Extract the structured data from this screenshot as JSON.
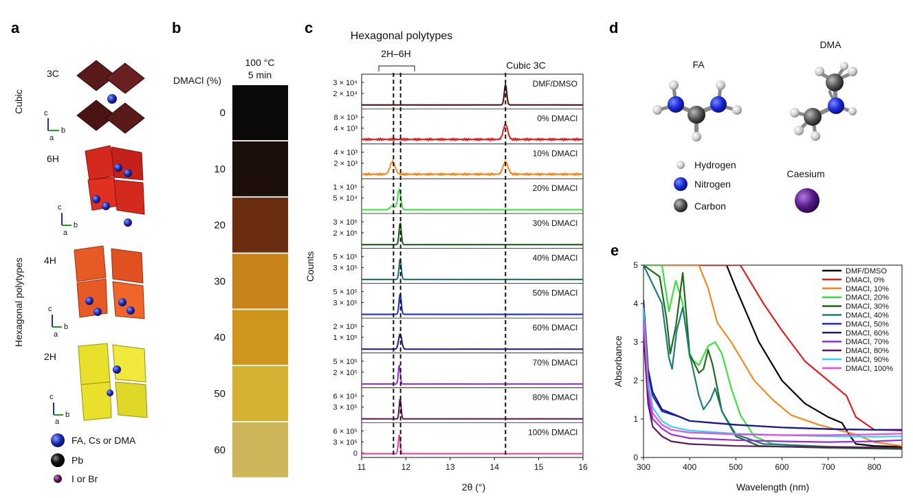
{
  "panels": {
    "a": {
      "letter": "a",
      "cubic_label": "Cubic",
      "hex_label": "Hexagonal polytypes",
      "structures": [
        {
          "name": "3C",
          "color": "#5a1a1a"
        },
        {
          "name": "6H",
          "color": "#d42a1e"
        },
        {
          "name": "4H",
          "color": "#e85a25"
        },
        {
          "name": "2H",
          "color": "#e8e02a"
        }
      ],
      "axis_labels": {
        "c": "c",
        "b": "b",
        "a": "a"
      },
      "legend": [
        {
          "label": "FA, Cs or DMA",
          "color": "#1f2f8f"
        },
        {
          "label": "Pb",
          "color": "#000000"
        },
        {
          "label": "I or Br",
          "color": "#5a1a5a"
        }
      ]
    },
    "b": {
      "letter": "b",
      "header_line1": "100 °C",
      "header_line2": "5 min",
      "col_label": "DMACl (%)",
      "films": [
        {
          "pct": "0",
          "color": "#0b0a09"
        },
        {
          "pct": "10",
          "color": "#1c0f0b"
        },
        {
          "pct": "20",
          "color": "#6b2d10"
        },
        {
          "pct": "30",
          "color": "#c8841a"
        },
        {
          "pct": "40",
          "color": "#d0951c"
        },
        {
          "pct": "50",
          "color": "#d6b233"
        },
        {
          "pct": "60",
          "color": "#cdb55a"
        }
      ]
    },
    "c": {
      "letter": "c",
      "title": "Hexagonal polytypes",
      "bracket_label": "2H–6H",
      "cubic_label": "Cubic 3C",
      "ylabel": "Counts",
      "xlabel": "2θ (°)",
      "xticks": [
        "11",
        "12",
        "13",
        "14",
        "15",
        "16"
      ],
      "panels": [
        {
          "label": "DMF/DMSO",
          "color": "#4a1010",
          "ticks": [
            "3 × 10⁴",
            "2 × 10⁴"
          ]
        },
        {
          "label": "0% DMACl",
          "color": "#e01e1e",
          "ticks": [
            "8 × 10³",
            "4 × 10³"
          ]
        },
        {
          "label": "10% DMACl",
          "color": "#f08a1e",
          "ticks": [
            "4 × 10³",
            "2 × 10³"
          ]
        },
        {
          "label": "20% DMACl",
          "color": "#3ce03c",
          "ticks": [
            "1 × 10⁵",
            "5 × 10⁴"
          ]
        },
        {
          "label": "30% DMACl",
          "color": "#1a5a1a",
          "ticks": [
            "3 × 10⁵",
            "2 × 10⁵"
          ]
        },
        {
          "label": "40% DMACl",
          "color": "#1a6a6a",
          "ticks": [
            "5 × 10⁵",
            "3 × 10⁵"
          ]
        },
        {
          "label": "50% DMACl",
          "color": "#1a2ad0",
          "ticks": [
            "5 × 10⁵",
            "3 × 10⁵"
          ]
        },
        {
          "label": "60% DMACl",
          "color": "#1a1a8a",
          "ticks": [
            "2 × 10⁵",
            "1 × 10⁵"
          ]
        },
        {
          "label": "70% DMACl",
          "color": "#9a2ae0",
          "ticks": [
            "5 × 10⁵",
            "2 × 10⁵"
          ]
        },
        {
          "label": "80% DMACl",
          "color": "#5a1a4a",
          "ticks": [
            "6 × 10⁵",
            "3 × 10⁵"
          ]
        },
        {
          "label": "100% DMACl",
          "color": "#f03aa0",
          "ticks": [
            "6 × 10⁵",
            "3 × 10⁵",
            "0"
          ]
        }
      ],
      "dashed_lines_2theta": [
        11.72,
        11.88,
        14.25
      ]
    },
    "d": {
      "letter": "d",
      "fa_label": "FA",
      "dma_label": "DMA",
      "legend": [
        {
          "label": "Hydrogen",
          "color": "#d8d8d8"
        },
        {
          "label": "Nitrogen",
          "color": "#1a2ad0"
        },
        {
          "label": "Carbon",
          "color": "#555555"
        }
      ],
      "caesium_label": "Caesium",
      "caesium_color": "#5a1a8a"
    },
    "e": {
      "letter": "e"
    }
  },
  "chart_data": {
    "type": "line",
    "xlabel": "Wavelength (nm)",
    "ylabel": "Absorbance",
    "xlim": [
      300,
      860
    ],
    "ylim": [
      0,
      5
    ],
    "xticks": [
      300,
      400,
      500,
      600,
      700,
      800
    ],
    "yticks": [
      0,
      1,
      2,
      3,
      4,
      5
    ],
    "legend_position": "top-right",
    "series": [
      {
        "name": "DMF/DMSO",
        "color": "#000000",
        "x": [
          300,
          400,
          450,
          480,
          500,
          550,
          600,
          650,
          700,
          730,
          745,
          760,
          800,
          860
        ],
        "y": [
          5,
          5,
          5,
          5,
          4.4,
          3.0,
          2.0,
          1.4,
          1.05,
          0.9,
          0.6,
          0.35,
          0.3,
          0.28
        ]
      },
      {
        "name": "DMACl, 0%",
        "color": "#e01e1e",
        "x": [
          300,
          480,
          510,
          530,
          560,
          600,
          650,
          700,
          740,
          760,
          800,
          860
        ],
        "y": [
          5,
          5,
          5,
          4.6,
          4.0,
          3.3,
          2.5,
          2.0,
          1.6,
          1.05,
          0.72,
          0.7
        ]
      },
      {
        "name": "DMACl, 10%",
        "color": "#f08a1e",
        "x": [
          300,
          420,
          440,
          460,
          490,
          510,
          540,
          580,
          620,
          680,
          720,
          760,
          800,
          860
        ],
        "y": [
          5,
          5,
          4.4,
          3.5,
          3.0,
          2.6,
          2.0,
          1.5,
          1.1,
          0.85,
          0.72,
          0.6,
          0.4,
          0.3
        ]
      },
      {
        "name": "DMACl, 20%",
        "color": "#3ce03c",
        "x": [
          300,
          340,
          355,
          370,
          385,
          400,
          420,
          440,
          455,
          470,
          490,
          510,
          540,
          580,
          700,
          860
        ],
        "y": [
          5,
          5,
          3.8,
          4.6,
          4.0,
          2.6,
          2.4,
          2.9,
          3.0,
          2.7,
          1.8,
          1.1,
          0.55,
          0.35,
          0.28,
          0.25
        ]
      },
      {
        "name": "DMACl, 30%",
        "color": "#1a6a1a",
        "x": [
          300,
          335,
          350,
          358,
          370,
          385,
          400,
          420,
          430,
          440,
          450,
          470,
          500,
          550,
          700,
          860
        ],
        "y": [
          5,
          4.7,
          3.6,
          2.7,
          3.4,
          4.8,
          2.7,
          2.2,
          2.3,
          2.8,
          2.4,
          1.2,
          0.55,
          0.3,
          0.25,
          0.22
        ]
      },
      {
        "name": "DMACl, 40%",
        "color": "#1a7a7a",
        "x": [
          300,
          340,
          355,
          362,
          372,
          385,
          400,
          420,
          430,
          445,
          455,
          470,
          500,
          560,
          700,
          860
        ],
        "y": [
          5,
          4.0,
          2.6,
          2.3,
          3.3,
          3.9,
          2.7,
          1.6,
          1.25,
          1.5,
          1.8,
          1.2,
          0.6,
          0.35,
          0.28,
          0.25
        ]
      },
      {
        "name": "DMACl, 50%",
        "color": "#1a2ad0",
        "x": [
          300,
          310,
          320,
          340,
          380,
          400,
          450,
          500,
          600,
          700,
          800,
          860
        ],
        "y": [
          4.0,
          2.2,
          1.6,
          1.2,
          1.05,
          0.95,
          0.9,
          0.85,
          0.78,
          0.74,
          0.72,
          0.72
        ]
      },
      {
        "name": "DMACl, 60%",
        "color": "#1a1a8a",
        "x": [
          300,
          310,
          320,
          340,
          380,
          400,
          450,
          500,
          600,
          700,
          800,
          860
        ],
        "y": [
          4.1,
          2.3,
          1.7,
          1.25,
          1.05,
          0.95,
          0.9,
          0.85,
          0.78,
          0.74,
          0.72,
          0.72
        ]
      },
      {
        "name": "DMACl, 70%",
        "color": "#9a2ae0",
        "x": [
          300,
          310,
          320,
          340,
          360,
          400,
          500,
          600,
          700,
          800,
          860
        ],
        "y": [
          3.5,
          1.6,
          1.0,
          0.75,
          0.6,
          0.5,
          0.45,
          0.42,
          0.4,
          0.42,
          0.45
        ]
      },
      {
        "name": "DMACl, 80%",
        "color": "#5a1a5a",
        "x": [
          300,
          310,
          320,
          340,
          360,
          400,
          500,
          600,
          700,
          800,
          860
        ],
        "y": [
          3.2,
          1.4,
          0.8,
          0.55,
          0.42,
          0.35,
          0.3,
          0.28,
          0.27,
          0.26,
          0.25
        ]
      },
      {
        "name": "DMACl, 90%",
        "color": "#2ad8e8",
        "x": [
          300,
          310,
          320,
          340,
          360,
          400,
          500,
          600,
          700,
          800,
          860
        ],
        "y": [
          3.9,
          2.0,
          1.3,
          0.95,
          0.8,
          0.7,
          0.62,
          0.58,
          0.55,
          0.54,
          0.55
        ]
      },
      {
        "name": "DMACl, 100%",
        "color": "#e84ae8",
        "x": [
          300,
          310,
          320,
          340,
          360,
          400,
          500,
          600,
          700,
          800,
          860
        ],
        "y": [
          3.6,
          1.8,
          1.15,
          0.85,
          0.72,
          0.65,
          0.6,
          0.58,
          0.58,
          0.6,
          0.62
        ]
      }
    ]
  }
}
